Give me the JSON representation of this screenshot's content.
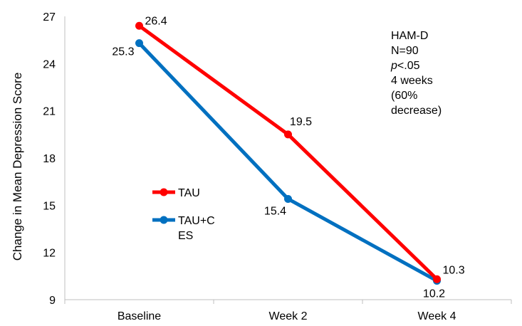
{
  "chart_data": {
    "type": "line",
    "categories": [
      "Baseline",
      "Week 2",
      "Week 4"
    ],
    "ylabel": "Change in Mean Depression Score",
    "ylim": [
      9,
      27
    ],
    "yticks": [
      9,
      12,
      15,
      18,
      21,
      24,
      27
    ],
    "grid": false,
    "legend_position": "center-left",
    "series": [
      {
        "name": "TAU",
        "values": [
          26.4,
          19.5,
          10.3
        ],
        "labels": [
          "26.4",
          "19.5",
          "10.3"
        ],
        "color": "#ff0000"
      },
      {
        "name": "TAU+CES",
        "name_lines": [
          "TAU+C",
          "ES"
        ],
        "values": [
          25.3,
          15.4,
          10.2
        ],
        "labels": [
          "25.3",
          "15.4",
          "10.2"
        ],
        "color": "#0070c0"
      }
    ],
    "annotation": {
      "line1": "HAM-D",
      "line2": "N=90",
      "line3_italic": "p",
      "line3_rest": "<.05",
      "line4": "4 weeks",
      "line5": "(60%",
      "line6": "decrease)"
    }
  }
}
